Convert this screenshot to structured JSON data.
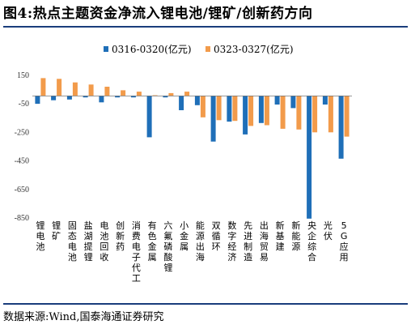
{
  "title": "图4:热点主题资金净流入锂电池/锂矿/创新药方向",
  "source": "数据来源:Wind,国泰海通证券研究",
  "colors": {
    "series1": "#1f6fb8",
    "series2": "#f29b4b",
    "rule": "#1a3d7c"
  },
  "chart_data": {
    "type": "bar",
    "legend_position": "top-center",
    "grid": false,
    "ylim": [
      -850,
      150
    ],
    "yticks": [
      150,
      -50,
      -250,
      -450,
      -650,
      -850
    ],
    "categories": [
      "锂电池",
      "锂矿",
      "固态电池",
      "盐湖提锂",
      "电池回收",
      "创新药",
      "消费电子代工",
      "有色金属",
      "六氟磷酸锂",
      "小金属",
      "能源出海",
      "双循环",
      "数字经济",
      "先进制造",
      "出海贸易",
      "新基建",
      "新能源",
      "央企综合",
      "光伏",
      "5G应用"
    ],
    "series": [
      {
        "name": "0316-0320(亿元)",
        "values": [
          -55,
          -30,
          -25,
          -10,
          -45,
          -10,
          -10,
          -290,
          -10,
          -100,
          -65,
          -320,
          -180,
          -270,
          -190,
          -60,
          -85,
          -860,
          -60,
          -440
        ]
      },
      {
        "name": "0323-0327(亿元)",
        "values": [
          125,
          120,
          95,
          80,
          65,
          40,
          30,
          5,
          20,
          30,
          -150,
          -170,
          -175,
          -210,
          -205,
          -230,
          -235,
          -255,
          -255,
          -285
        ]
      }
    ]
  }
}
